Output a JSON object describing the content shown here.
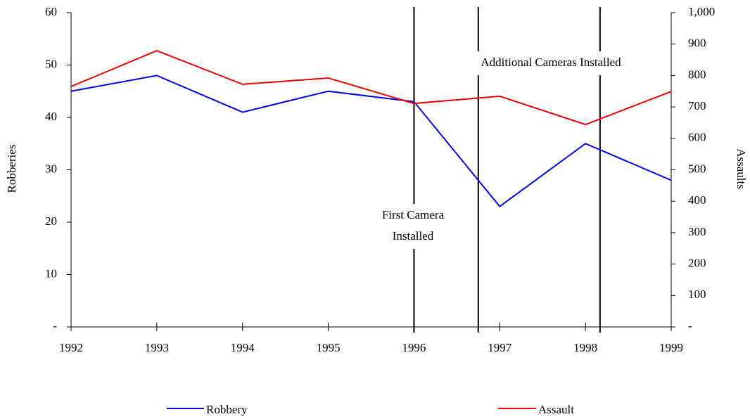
{
  "chart_data": {
    "type": "line",
    "y_label": "Robberies",
    "y2_label": "Assaults",
    "x": [
      1992,
      1993,
      1994,
      1995,
      1996,
      1997,
      1998,
      1999
    ],
    "xlim": [
      1992,
      1999
    ],
    "xticks": [
      1992,
      1993,
      1994,
      1995,
      1996,
      1997,
      1998,
      1999
    ],
    "ylim": [
      0,
      60
    ],
    "yticks": [
      {
        "value": 0,
        "label": "-"
      },
      10,
      20,
      30,
      40,
      50,
      60
    ],
    "y2lim": [
      0,
      1000
    ],
    "y2ticks": [
      {
        "value": 0,
        "label": "-"
      },
      100,
      200,
      300,
      400,
      500,
      600,
      700,
      800,
      900,
      {
        "value": 1000,
        "label": "1,000"
      }
    ],
    "series": [
      {
        "name": "Robbery",
        "color": "#0000ee",
        "values": [
          45,
          48,
          41,
          45,
          43,
          23,
          35,
          28
        ]
      },
      {
        "name": "Assault",
        "color": "#ee0000",
        "axis": "y2",
        "values": [
          765,
          879,
          772,
          792,
          711,
          734,
          644,
          749
        ]
      }
    ],
    "vlines": [
      1996,
      1996.75,
      1998.17
    ],
    "annotations": [
      {
        "text": [
          "First Camera",
          "Installed"
        ]
      },
      {
        "text": [
          "Additional Cameras Installed"
        ]
      }
    ],
    "legend": "bottom"
  }
}
